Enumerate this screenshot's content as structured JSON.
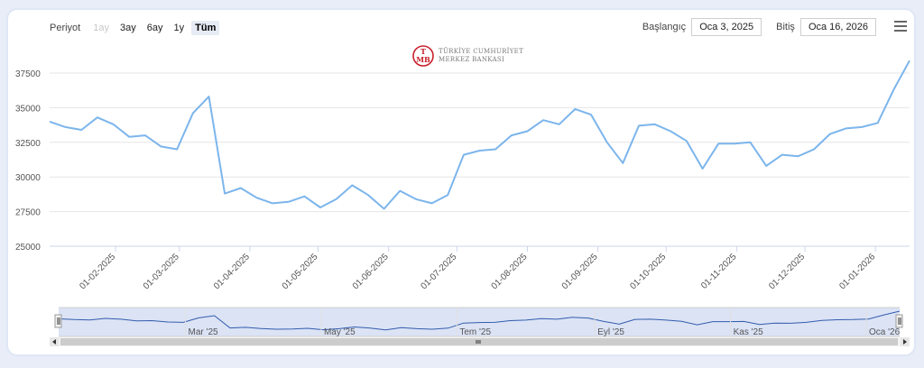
{
  "toolbar": {
    "period_label": "Periyot",
    "ranges": [
      {
        "label": "1ay",
        "state": "disabled"
      },
      {
        "label": "3ay",
        "state": "normal"
      },
      {
        "label": "6ay",
        "state": "normal"
      },
      {
        "label": "1y",
        "state": "normal"
      },
      {
        "label": "Tüm",
        "state": "active"
      }
    ],
    "start_label": "Başlangıç",
    "start_value": "Oca 3, 2025",
    "end_label": "Bitiş",
    "end_value": "Oca 16, 2026",
    "menu_icon": "hamburger-menu-icon"
  },
  "logo": {
    "line1": "TÜRKİYE CUMHURİYET",
    "line2": "MERKEZ BANKASI",
    "icon": "tcmb-logo-icon",
    "color": "#c8202a"
  },
  "colors": {
    "series": "#7cb5ec",
    "navigator_fill": "#dbe3f5",
    "navigator_series": "#335cad",
    "grid": "#e6e6e6"
  },
  "chart_data": {
    "type": "line",
    "ylim": [
      25000,
      37500
    ],
    "y_ticks": [
      "25000",
      "27500",
      "30000",
      "32500",
      "35000",
      "37500"
    ],
    "x_ticks": [
      "01-02-2025",
      "01-03-2025",
      "01-04-2025",
      "01-05-2025",
      "01-06-2025",
      "01-07-2025",
      "01-08-2025",
      "01-09-2025",
      "01-10-2025",
      "01-11-2025",
      "01-12-2025",
      "01-01-2026"
    ],
    "grid": true,
    "series": [
      {
        "x": [
          "2025-01-03",
          "2025-01-10",
          "2025-01-17",
          "2025-01-24",
          "2025-01-31",
          "2025-02-07",
          "2025-02-14",
          "2025-02-21",
          "2025-02-28",
          "2025-03-07",
          "2025-03-14",
          "2025-03-21",
          "2025-03-28",
          "2025-04-04",
          "2025-04-11",
          "2025-04-18",
          "2025-04-25",
          "2025-05-02",
          "2025-05-09",
          "2025-05-16",
          "2025-05-23",
          "2025-05-30",
          "2025-06-06",
          "2025-06-13",
          "2025-06-20",
          "2025-06-27",
          "2025-07-04",
          "2025-07-11",
          "2025-07-18",
          "2025-07-25",
          "2025-08-01",
          "2025-08-08",
          "2025-08-15",
          "2025-08-22",
          "2025-08-29",
          "2025-09-05",
          "2025-09-12",
          "2025-09-19",
          "2025-09-26",
          "2025-10-03",
          "2025-10-10",
          "2025-10-17",
          "2025-10-24",
          "2025-10-31",
          "2025-11-07",
          "2025-11-14",
          "2025-11-21",
          "2025-11-28",
          "2025-12-05",
          "2025-12-12",
          "2025-12-19",
          "2025-12-26",
          "2026-01-02",
          "2026-01-09",
          "2026-01-16"
        ],
        "values": [
          34000,
          33600,
          33400,
          34300,
          33800,
          32900,
          33000,
          32200,
          32000,
          34600,
          35800,
          28800,
          29200,
          28500,
          28100,
          28200,
          28600,
          27800,
          28400,
          29400,
          28700,
          27700,
          29000,
          28400,
          28100,
          28700,
          31600,
          31900,
          32000,
          33000,
          33300,
          34100,
          33800,
          34900,
          34500,
          32500,
          31000,
          33700,
          33800,
          33300,
          32600,
          30600,
          32400,
          32400,
          32500,
          30800,
          31600,
          31500,
          32000,
          33100,
          33500,
          33600,
          33900,
          36300,
          38400
        ]
      }
    ],
    "navigator": {
      "labels": [
        "Mar '25",
        "May '25",
        "Tem '25",
        "Eyl '25",
        "Kas '25",
        "Oca '26"
      ]
    }
  }
}
